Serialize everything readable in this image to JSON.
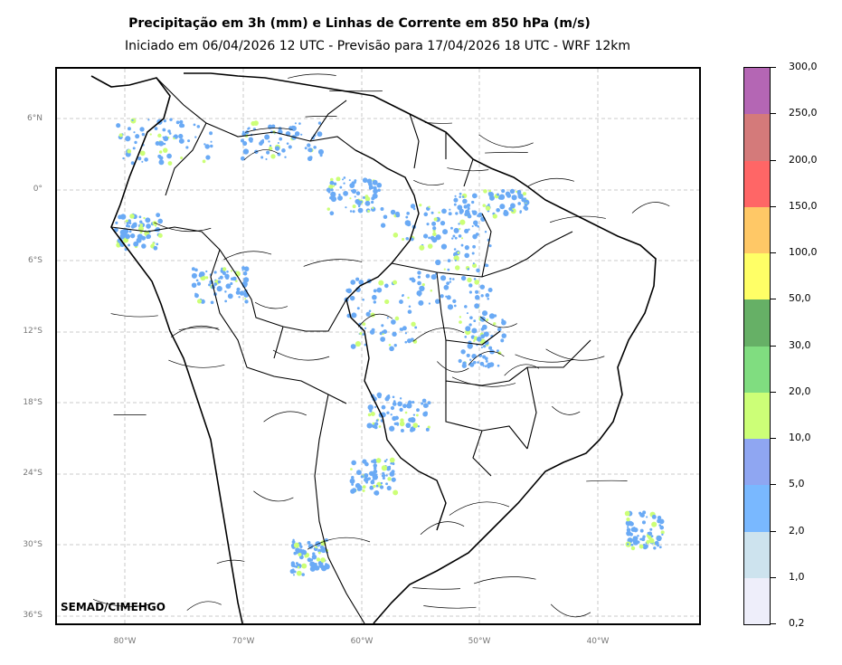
{
  "title_line1": "Precipitação em 3h (mm) e Linhas de Corrente em 850 hPa (m/s)",
  "title_line2": "Iniciado em 06/04/2026 12 UTC - Previsão para 17/04/2026 18 UTC - WRF 12km",
  "credit": "SEMAD/CIMEHGO",
  "lat_labels": [
    "6°N",
    "0°",
    "6°S",
    "12°S",
    "18°S",
    "24°S",
    "30°S",
    "36°S"
  ],
  "lon_labels": [
    "80°W",
    "70°W",
    "60°W",
    "50°W",
    "40°W"
  ],
  "colorbar": {
    "labels": [
      "0,2",
      "1,0",
      "2,0",
      "5,0",
      "10,0",
      "20,0",
      "30,0",
      "50,0",
      "100,0",
      "150,0",
      "200,0",
      "250,0",
      "300,0"
    ],
    "colors": [
      "#eeeefa",
      "#cde3ee",
      "#79b8ff",
      "#8fa6f2",
      "#ccff77",
      "#80dd80",
      "#66b066",
      "#ffff66",
      "#ffc866",
      "#ff6666",
      "#d47a7a",
      "#b466b4"
    ]
  },
  "colors": {
    "grid": "#bbbbbb",
    "boundary": "#000000",
    "streamline": "#000000",
    "rain_light": "#6aaaf5",
    "rain_mid": "#ccff77"
  }
}
